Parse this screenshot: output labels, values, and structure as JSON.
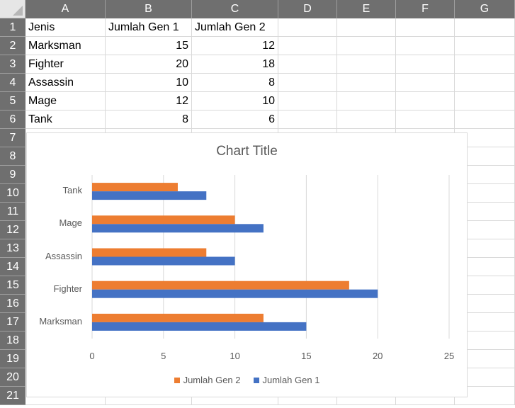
{
  "columns": [
    "A",
    "B",
    "C",
    "D",
    "E",
    "F",
    "G"
  ],
  "rows": [
    "1",
    "2",
    "3",
    "4",
    "5",
    "6",
    "7",
    "8",
    "9",
    "10",
    "11",
    "12",
    "13",
    "14",
    "15",
    "16",
    "17",
    "18",
    "19",
    "20",
    "21"
  ],
  "table": {
    "header": [
      "Jenis",
      "Jumlah Gen 1",
      "Jumlah Gen 2"
    ],
    "rows": [
      [
        "Marksman",
        "15",
        "12"
      ],
      [
        "Fighter",
        "20",
        "18"
      ],
      [
        "Assassin",
        "10",
        "8"
      ],
      [
        "Mage",
        "12",
        "10"
      ],
      [
        "Tank",
        "8",
        "6"
      ]
    ]
  },
  "colors": {
    "gen1": "#4472c4",
    "gen2": "#ed7d31",
    "header_bg": "#6f6f6f",
    "gridline": "#d9d9d9"
  },
  "chart_data": {
    "type": "bar",
    "orientation": "horizontal",
    "title": "Chart Title",
    "categories": [
      "Marksman",
      "Fighter",
      "Assassin",
      "Mage",
      "Tank"
    ],
    "series": [
      {
        "name": "Jumlah Gen 1",
        "values": [
          15,
          20,
          10,
          12,
          8
        ],
        "color": "#4472c4"
      },
      {
        "name": "Jumlah Gen 2",
        "values": [
          12,
          18,
          8,
          10,
          6
        ],
        "color": "#ed7d31"
      }
    ],
    "xlim": [
      0,
      25
    ],
    "xticks": [
      "0",
      "5",
      "10",
      "15",
      "20",
      "25"
    ],
    "grid": true,
    "legend": {
      "position": "bottom",
      "entries": [
        "Jumlah Gen 2",
        "Jumlah Gen 1"
      ]
    }
  }
}
